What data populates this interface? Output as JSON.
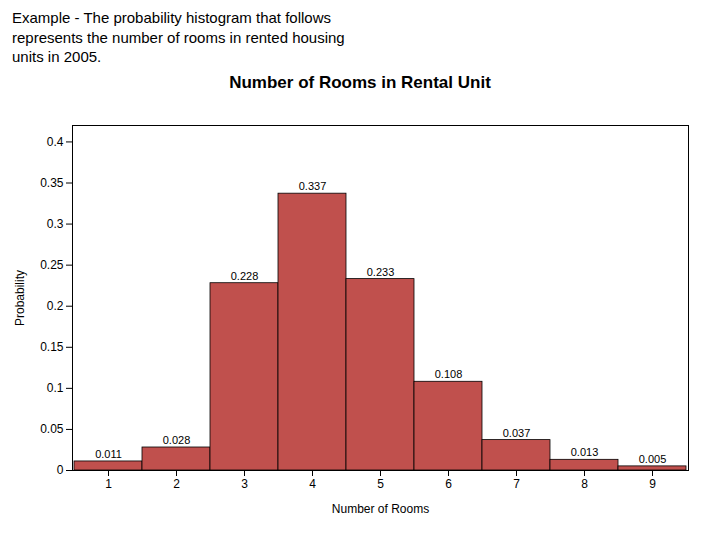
{
  "chart_data": {
    "type": "bar",
    "annotations": [
      "Example - The probability histogram that follows",
      "represents the number of rooms in rented housing",
      "units in 2005."
    ],
    "title": "Number of Rooms in Rental Unit",
    "xlabel": "Number of Rooms",
    "ylabel": "Probability",
    "categories": [
      1,
      2,
      3,
      4,
      5,
      6,
      7,
      8,
      9
    ],
    "values": [
      0.011,
      0.028,
      0.228,
      0.337,
      0.233,
      0.108,
      0.037,
      0.013,
      0.005
    ],
    "color": "#c0504d",
    "ylim": [
      0,
      0.42
    ],
    "yticks": [
      0,
      0.05,
      0.1,
      0.15,
      0.2,
      0.25,
      0.3,
      0.35,
      0.4
    ],
    "data_labels": true,
    "grid": false
  }
}
